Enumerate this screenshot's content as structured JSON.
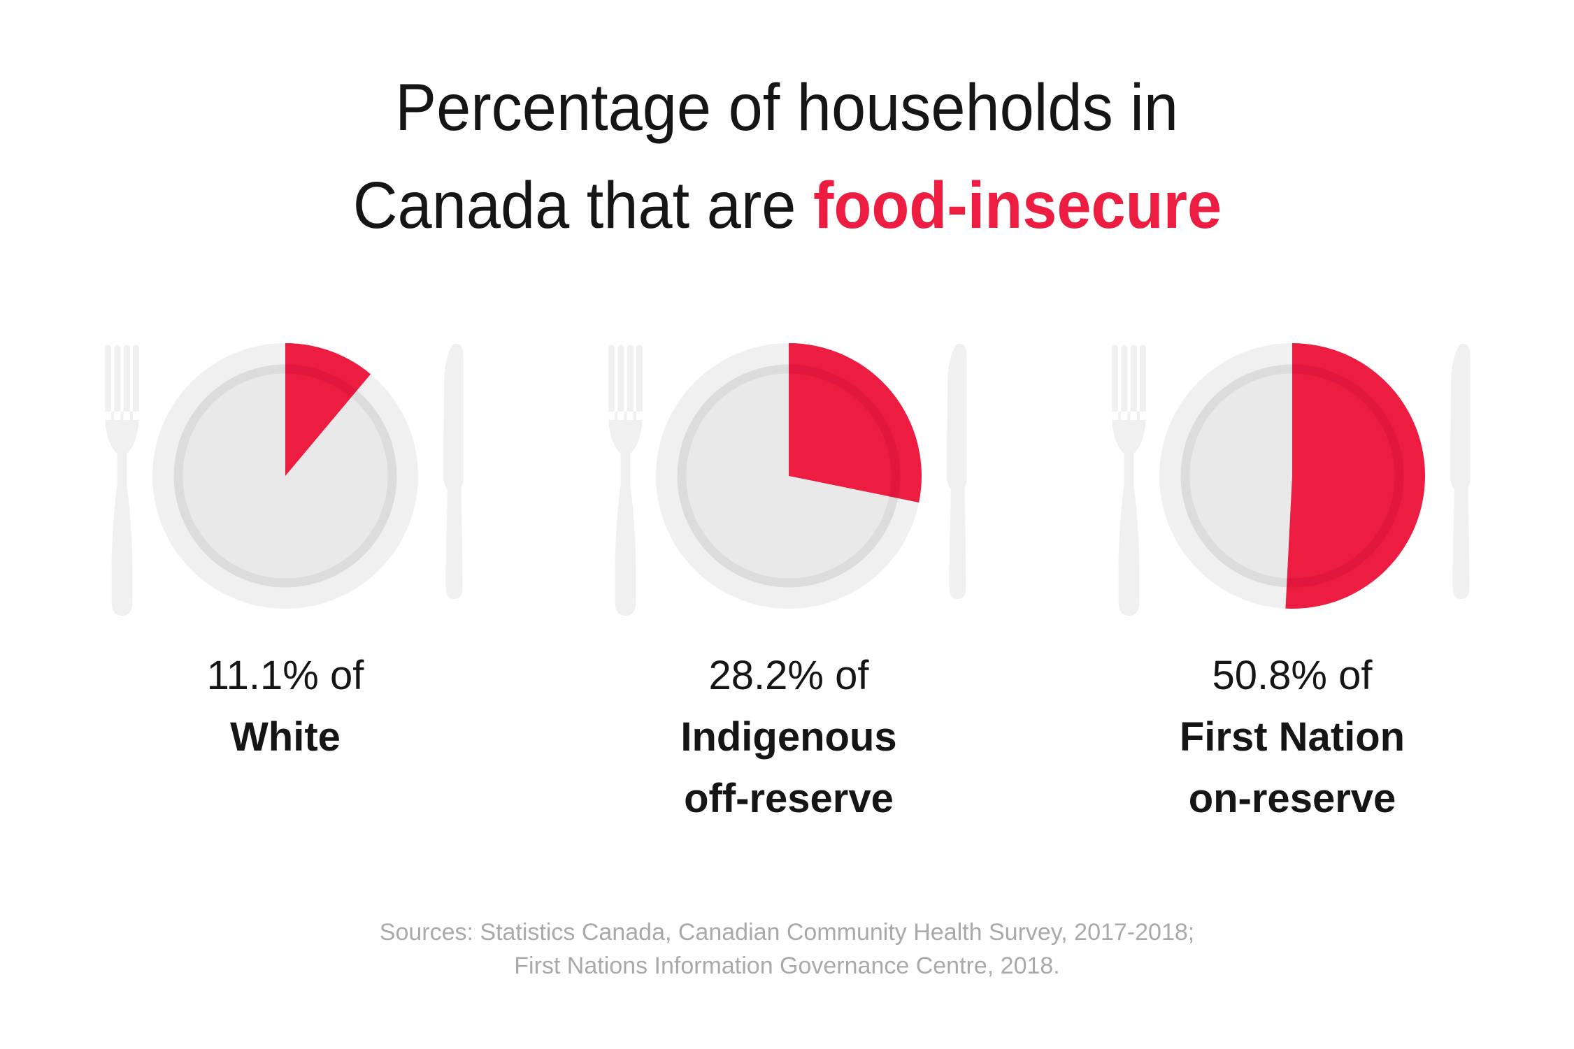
{
  "title": {
    "line1": "Percentage of households in",
    "line2_prefix": "Canada that are ",
    "line2_highlight": "food-insecure"
  },
  "chart_data": {
    "type": "pie",
    "title": "Percentage of households in Canada that are food-insecure",
    "legend_position": "below each plate",
    "start_angle_deg": 0,
    "direction": "clockwise",
    "series": [
      {
        "group": "White",
        "value": 11.1,
        "value_label": "11.1% of",
        "group_lines": [
          "White"
        ]
      },
      {
        "group": "Indigenous off-reserve",
        "value": 28.2,
        "value_label": "28.2% of",
        "group_lines": [
          "Indigenous",
          "off-reserve"
        ]
      },
      {
        "group": "First Nation on-reserve",
        "value": 50.8,
        "value_label": "50.8% of",
        "group_lines": [
          "First Nation",
          "on-reserve"
        ]
      }
    ]
  },
  "sources": {
    "line1": "Sources: Statistics Canada, Canadian Community Health Survey, 2017-2018;",
    "line2": "First Nations Information Governance Centre, 2018."
  },
  "colors": {
    "accent_red": "#ed1c41",
    "text_black": "#151515",
    "source_gray": "#a9a9aa",
    "plate_outer": "#f0f0f1",
    "plate_rim": "#dcdcdd",
    "plate_inner": "#e9e9ea",
    "cutlery": "#f0f0f1",
    "background": "#ffffff"
  }
}
